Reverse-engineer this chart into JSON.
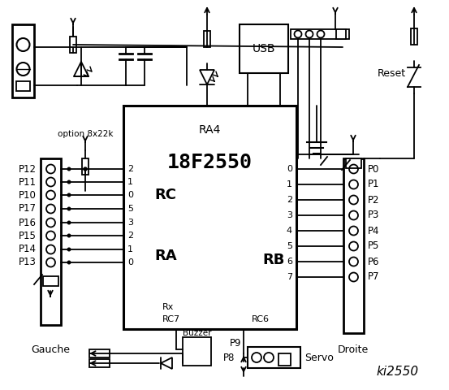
{
  "bg_color": "#ffffff",
  "title": "ki2550",
  "ic_label": "18F2550",
  "ic_sublabel": "RA4",
  "rc_label": "RC",
  "ra_label": "RA",
  "rb_label": "RB",
  "left_labels": [
    "P12",
    "P11",
    "P10",
    "P17",
    "P16",
    "P15",
    "P14",
    "P13"
  ],
  "left_pins_RC": [
    "2",
    "1",
    "0"
  ],
  "left_pins_RA": [
    "5",
    "3",
    "2",
    "1",
    "0"
  ],
  "right_labels": [
    "P0",
    "P1",
    "P2",
    "P3",
    "P4",
    "P5",
    "P6",
    "P7"
  ],
  "right_pins_RB": [
    "0",
    "1",
    "2",
    "3",
    "4",
    "5",
    "6",
    "7"
  ],
  "gauche_label": "Gauche",
  "droite_label": "Droite",
  "reset_label": "Reset",
  "usb_label": "USB",
  "option_label": "option 8x22k",
  "buzzer_label": "Buzzer",
  "p9_label": "P9",
  "p8_label": "P8",
  "servo_label": "Servo",
  "rx_label": "Rx",
  "rc7_label": "RC7",
  "rc6_label": "RC6"
}
